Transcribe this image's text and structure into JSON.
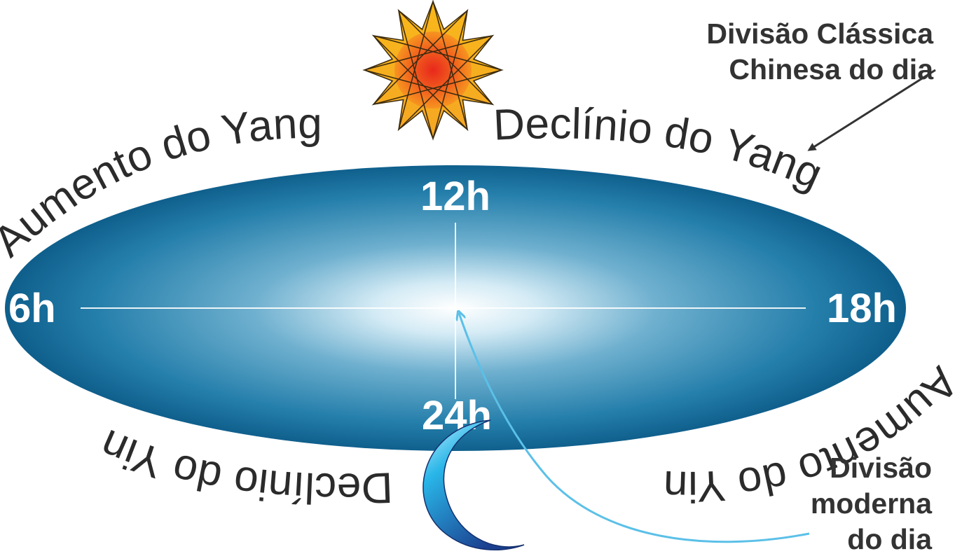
{
  "annotations": {
    "classic_line1": "Divisão Clássica",
    "classic_line2": "Chinesa do dia",
    "modern_line1": "Divisão",
    "modern_line2": "moderna",
    "modern_line3": "do dia"
  },
  "arc_labels": {
    "yang_rise": "Aumento do Yang",
    "yang_decline": "Declínio do Yang",
    "yin_rise": "Aumento do Yin",
    "yin_decline": "Declínio do Yin"
  },
  "hours": {
    "noon": "12h",
    "morning": "6h",
    "evening": "18h",
    "midnight": "24h"
  },
  "icons": {
    "sun": "sun-icon",
    "moon": "crescent-moon-icon"
  },
  "colors": {
    "ellipse_edge": "#0f5f8c",
    "ellipse_center": "#ffffff",
    "modern_arrow": "#5bc0e8",
    "classic_arrow": "#333333",
    "sun_core": "#e8281c",
    "sun_rays": "#f8b81a",
    "moon_light": "#b8ecff",
    "moon_dark": "#1b3f8f"
  }
}
